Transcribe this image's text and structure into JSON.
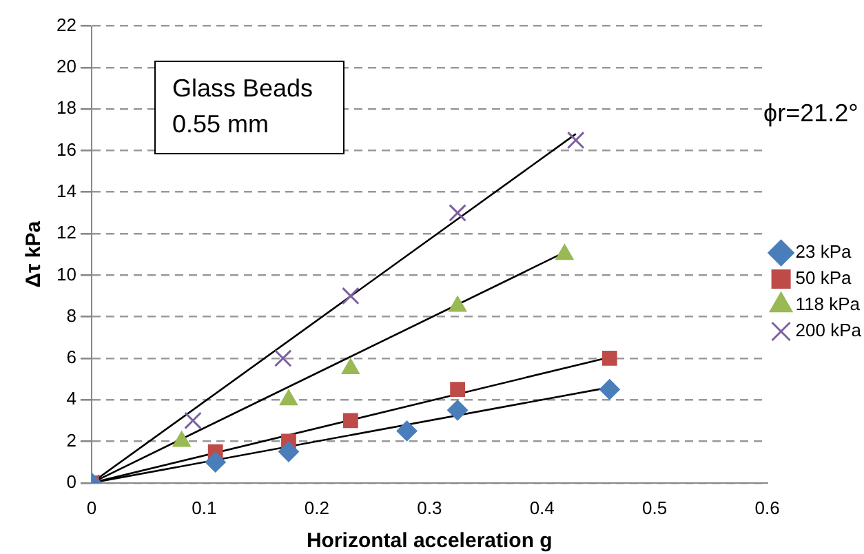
{
  "chart_data": {
    "type": "scatter",
    "xlabel": "Horizontal acceleration g",
    "ylabel": "Δτ kPa",
    "xlim": [
      0,
      0.6
    ],
    "xticks": [
      0,
      0.1,
      0.2,
      0.3,
      0.4,
      0.5,
      0.6
    ],
    "ylim": [
      0,
      22
    ],
    "yticks": [
      0,
      2,
      4,
      6,
      8,
      10,
      12,
      14,
      16,
      18,
      20,
      22
    ],
    "grid": "y",
    "legend": "right",
    "annotations": [
      "Glass Beads\n0.55 mm",
      "ϕr=21.2°"
    ],
    "series": [
      {
        "name": "23 kPa",
        "color": "#4a7ebb",
        "marker": "diamond",
        "x": [
          0,
          0.11,
          0.175,
          0.28,
          0.325,
          0.46
        ],
        "values": [
          0,
          1,
          1.5,
          2.5,
          3.5,
          4.5
        ]
      },
      {
        "name": "50 kPa",
        "color": "#be4b48",
        "marker": "square",
        "x": [
          0,
          0.11,
          0.175,
          0.23,
          0.325,
          0.46
        ],
        "values": [
          0,
          1.5,
          2,
          3,
          4.5,
          6
        ]
      },
      {
        "name": "118 kPa",
        "color": "#98b954",
        "marker": "triangle",
        "x": [
          0.08,
          0.175,
          0.23,
          0.325,
          0.42
        ],
        "values": [
          2,
          4,
          5.5,
          8.5,
          11
        ]
      },
      {
        "name": "200 kPa",
        "color": "#7d60a0",
        "marker": "cross",
        "x": [
          0,
          0.09,
          0.17,
          0.23,
          0.325,
          0.43
        ],
        "values": [
          0,
          3,
          6,
          9,
          13,
          16.5
        ]
      },
      {
        "type": "line",
        "color": "#000000",
        "marker": "none",
        "x": [
          0,
          0.46
        ],
        "values": [
          0,
          4.6
        ]
      },
      {
        "type": "line",
        "color": "#000000",
        "marker": "none",
        "x": [
          0,
          0.46
        ],
        "values": [
          0,
          6.05
        ]
      },
      {
        "type": "line",
        "color": "#000000",
        "marker": "none",
        "x": [
          0,
          0.42
        ],
        "values": [
          0,
          11.1
        ]
      },
      {
        "type": "line",
        "color": "#000000",
        "marker": "none",
        "x": [
          0,
          0.43
        ],
        "values": [
          0,
          16.8
        ]
      }
    ]
  }
}
